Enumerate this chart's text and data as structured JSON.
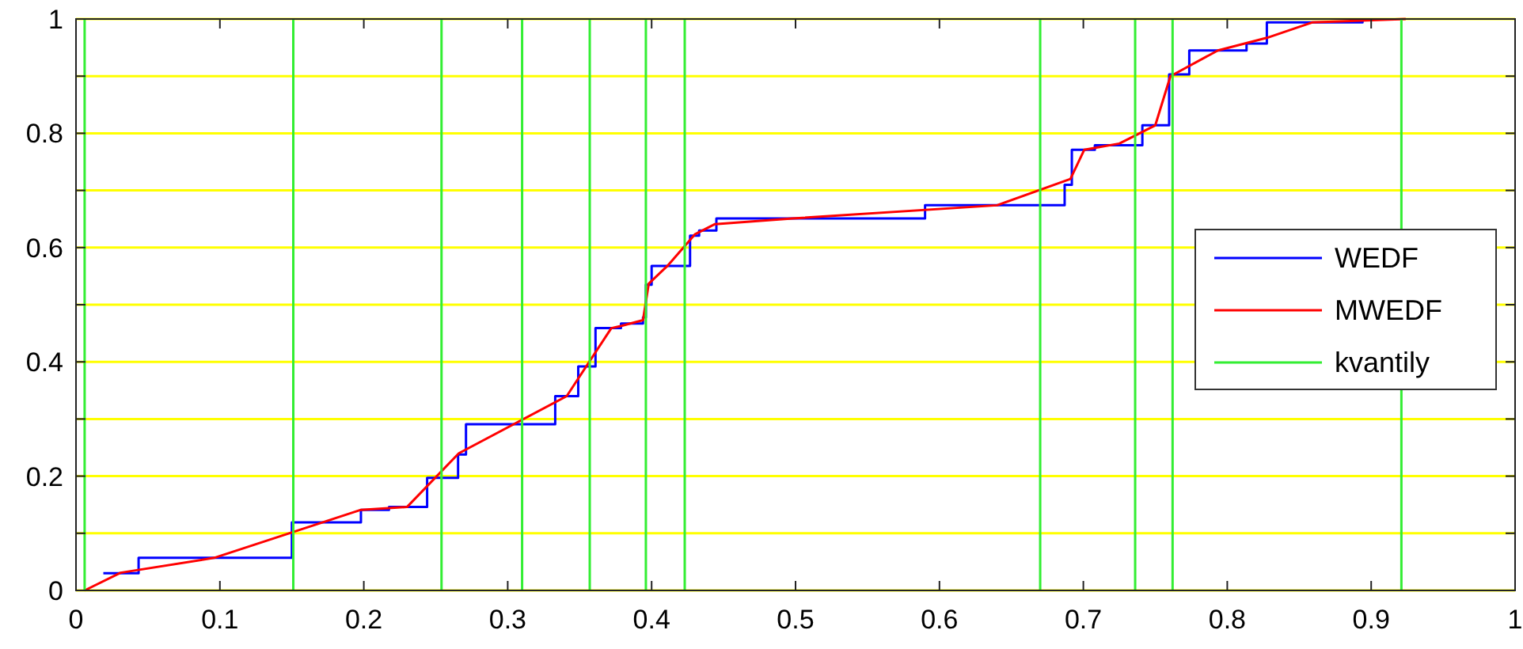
{
  "chart_data": {
    "type": "line",
    "xlim": [
      0,
      1
    ],
    "ylim": [
      0,
      1
    ],
    "xticks": [
      0,
      0.1,
      0.2,
      0.3,
      0.4,
      0.5,
      0.6,
      0.7,
      0.8,
      0.9,
      1
    ],
    "yticks": [
      0,
      {
        "value": 0.1,
        "label": null
      },
      0.2,
      {
        "value": 0.3,
        "label": null
      },
      0.4,
      {
        "value": 0.5,
        "label": null
      },
      0.6,
      {
        "value": 0.7,
        "label": null
      },
      0.8,
      {
        "value": 0.9,
        "label": null
      },
      1
    ],
    "grid": "y",
    "legend": "right",
    "series": [
      {
        "name": "WEDF",
        "type": "step",
        "color": "#0000ff",
        "x": [
          0.019,
          0.0435,
          0.15,
          0.198,
          0.2175,
          0.244,
          0.2655,
          0.271,
          0.333,
          0.349,
          0.361,
          0.3787,
          0.394,
          0.396,
          0.4,
          0.4267,
          0.433,
          0.445,
          0.59,
          0.687,
          0.692,
          0.708,
          0.741,
          0.7596,
          0.7736,
          0.8134,
          0.8275,
          0.894
        ],
        "values": [
          0.03,
          0.057,
          0.119,
          0.141,
          0.146,
          0.197,
          0.238,
          0.291,
          0.34,
          0.392,
          0.459,
          0.467,
          0.478,
          0.535,
          0.568,
          0.621,
          0.63,
          0.651,
          0.674,
          0.71,
          0.771,
          0.779,
          0.814,
          0.903,
          0.945,
          0.957,
          0.994,
          1
        ]
      },
      {
        "name": "MWEDF",
        "color": "#ff0000",
        "x": [
          0.006,
          0.031,
          0.096,
          0.198,
          0.23,
          0.266,
          0.341,
          0.372,
          0.379,
          0.394,
          0.398,
          0.411,
          0.43,
          0.444,
          0.498,
          0.64,
          0.691,
          0.7006,
          0.725,
          0.75,
          0.7605,
          0.7935,
          0.8275,
          0.859,
          0.924
        ],
        "values": [
          0,
          0.031,
          0.057,
          0.141,
          0.146,
          0.24,
          0.34,
          0.459,
          0.463,
          0.473,
          0.537,
          0.568,
          0.623,
          0.641,
          0.651,
          0.674,
          0.72,
          0.771,
          0.782,
          0.814,
          0.9,
          0.945,
          0.967,
          0.994,
          1
        ]
      },
      {
        "name": "kvantily",
        "color": "#33ee33",
        "x": [
          0.006,
          0.006,
          null,
          0.151,
          0.151,
          null,
          0.254,
          0.254,
          null,
          0.31,
          0.31,
          null,
          0.357,
          0.357,
          null,
          0.396,
          0.396,
          null,
          0.423,
          0.423,
          null,
          0.67,
          0.67,
          null,
          0.736,
          0.736,
          null,
          0.762,
          0.762,
          null,
          0.921,
          0.921
        ],
        "values": [
          0,
          1,
          null,
          0,
          1,
          null,
          0,
          1,
          null,
          0,
          1,
          null,
          0,
          1,
          null,
          0,
          1,
          null,
          0,
          1,
          null,
          0,
          1,
          null,
          0,
          1,
          null,
          0,
          1,
          null,
          0,
          1
        ]
      }
    ]
  }
}
